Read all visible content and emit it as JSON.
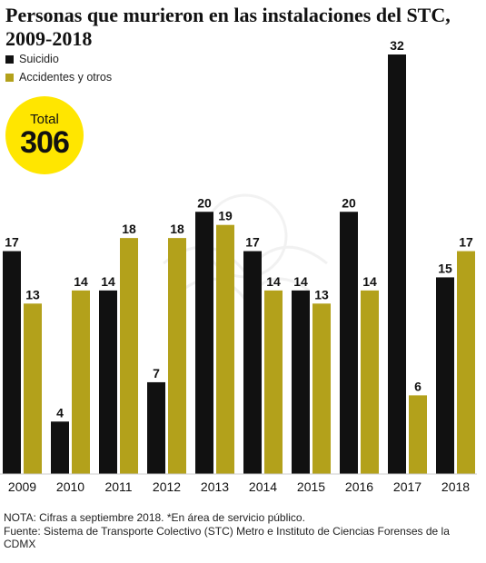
{
  "chart_data": {
    "type": "bar",
    "title": "Personas que murieron en las instalaciones del STC, 2009-2018",
    "categories": [
      "2009",
      "2010",
      "2011",
      "2012",
      "2013",
      "2014",
      "2015",
      "2016",
      "2017",
      "2018"
    ],
    "series": [
      {
        "name": "Suicidio",
        "color": "#111111",
        "values": [
          17,
          4,
          14,
          7,
          20,
          17,
          14,
          20,
          32,
          15
        ]
      },
      {
        "name": "Accidentes y otros",
        "color": "#b3a11b",
        "values": [
          13,
          14,
          18,
          18,
          19,
          14,
          13,
          14,
          6,
          17
        ]
      }
    ],
    "ylim": [
      0,
      32
    ],
    "grid": false,
    "legend": "top-left",
    "data_labels": true
  },
  "total": {
    "label": "Total",
    "value": "306",
    "color": "#ffe600"
  },
  "notes": {
    "nota": "NOTA: Cifras a septiembre 2018. *En área de servicio público.",
    "fuente": "Fuente: Sistema de Transporte Colectivo (STC) Metro e Instituto de Ciencias Forenses de la CDMX"
  }
}
